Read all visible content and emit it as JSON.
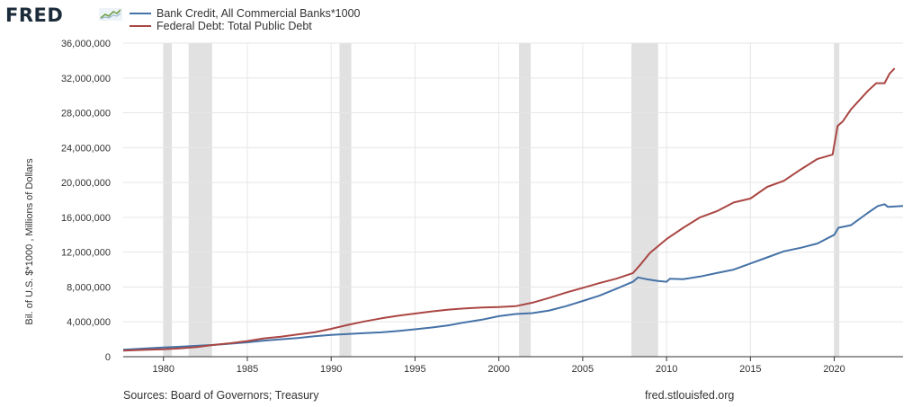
{
  "header": {
    "logo_text": "FRED",
    "logo_graph_icon": "line-graph-icon"
  },
  "footer": {
    "source": "Sources: Board of Governors; Treasury",
    "url": "fred.stlouisfed.org"
  },
  "chart_data": {
    "type": "line",
    "title": "",
    "xlabel": "",
    "ylabel": "Bil. of U.S. $*1000 , Millions of Dollars",
    "xlim": [
      1977.6,
      2024.1
    ],
    "ylim": [
      0,
      36000000
    ],
    "yticks": [
      0,
      4000000,
      8000000,
      12000000,
      16000000,
      20000000,
      24000000,
      28000000,
      32000000,
      36000000
    ],
    "ytick_labels": [
      "0",
      "4,000,000",
      "8,000,000",
      "12,000,000",
      "16,000,000",
      "20,000,000",
      "24,000,000",
      "28,000,000",
      "32,000,000",
      "36,000,000"
    ],
    "xticks": [
      1980,
      1985,
      1990,
      1995,
      2000,
      2005,
      2010,
      2015,
      2020
    ],
    "xtick_labels": [
      "1980",
      "1985",
      "1990",
      "1995",
      "2000",
      "2005",
      "2010",
      "2015",
      "2020"
    ],
    "grid": true,
    "legend_position": "top-left",
    "recessions": [
      [
        1980.0,
        1980.5
      ],
      [
        1981.5,
        1982.9
      ],
      [
        1990.5,
        1991.2
      ],
      [
        2001.2,
        2001.9
      ],
      [
        2007.9,
        2009.5
      ],
      [
        2020.0,
        2020.3
      ]
    ],
    "colors": {
      "recession": "#e1e1e1",
      "grid": "#e6e6e6",
      "axis": "#333333"
    },
    "series": [
      {
        "name": "Bank Credit, All Commercial Banks*1000",
        "color": "#4572a7",
        "x": [
          1977.6,
          1979,
          1980,
          1981,
          1982,
          1983,
          1984,
          1985,
          1986,
          1987,
          1988,
          1989,
          1990,
          1991,
          1992,
          1993,
          1994,
          1995,
          1996,
          1997,
          1998,
          1999,
          2000,
          2001,
          2002,
          2003,
          2004,
          2005,
          2006,
          2007,
          2008,
          2008.3,
          2008.8,
          2009.5,
          2010,
          2010.2,
          2011,
          2012,
          2013,
          2014,
          2015,
          2016,
          2017,
          2018,
          2019,
          2020.0,
          2020.25,
          2021,
          2022,
          2022.6,
          2023,
          2023.2,
          2024.1
        ],
        "y": [
          800000,
          950000,
          1050000,
          1150000,
          1250000,
          1350000,
          1500000,
          1650000,
          1850000,
          2000000,
          2150000,
          2350000,
          2500000,
          2600000,
          2700000,
          2800000,
          2950000,
          3150000,
          3350000,
          3600000,
          3950000,
          4250000,
          4650000,
          4900000,
          5000000,
          5300000,
          5800000,
          6400000,
          7000000,
          7800000,
          8600000,
          9100000,
          8900000,
          8700000,
          8600000,
          8950000,
          8900000,
          9200000,
          9600000,
          10000000,
          10700000,
          11400000,
          12100000,
          12500000,
          13000000,
          14000000,
          14800000,
          15100000,
          16500000,
          17300000,
          17500000,
          17200000,
          17300000
        ]
      },
      {
        "name": "Federal Debt: Total Public Debt",
        "color": "#aa4643",
        "x": [
          1977.6,
          1979,
          1980,
          1981,
          1982,
          1983,
          1984,
          1985,
          1986,
          1987,
          1988,
          1989,
          1990,
          1991,
          1992,
          1993,
          1994,
          1995,
          1996,
          1997,
          1998,
          1999,
          2000,
          2001,
          2002,
          2003,
          2004,
          2005,
          2006,
          2007,
          2008,
          2008.5,
          2009,
          2010,
          2011,
          2012,
          2013,
          2014,
          2015,
          2016,
          2017,
          2018,
          2019,
          2019.9,
          2020.2,
          2020.5,
          2021,
          2022,
          2022.5,
          2023,
          2023.3,
          2023.6
        ],
        "y": [
          700000,
          800000,
          850000,
          950000,
          1100000,
          1350000,
          1550000,
          1800000,
          2100000,
          2300000,
          2550000,
          2800000,
          3200000,
          3650000,
          4050000,
          4400000,
          4700000,
          4950000,
          5200000,
          5400000,
          5550000,
          5650000,
          5700000,
          5800000,
          6200000,
          6750000,
          7350000,
          7900000,
          8450000,
          8950000,
          9600000,
          10700000,
          11900000,
          13500000,
          14800000,
          16000000,
          16700000,
          17700000,
          18150000,
          19500000,
          20200000,
          21500000,
          22700000,
          23200000,
          26500000,
          27000000,
          28400000,
          30500000,
          31400000,
          31400000,
          32500000,
          33100000
        ]
      }
    ]
  }
}
